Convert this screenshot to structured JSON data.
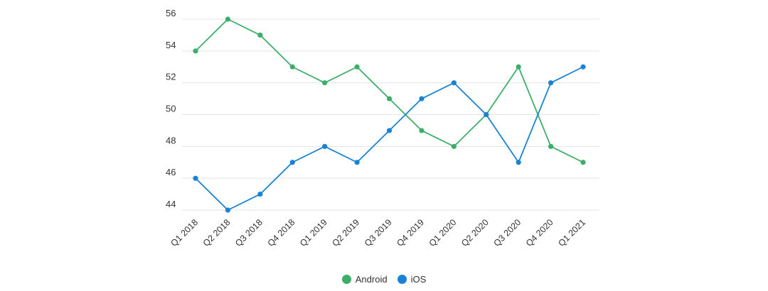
{
  "chart_data": {
    "type": "line",
    "categories": [
      "Q1 2018",
      "Q2 2018",
      "Q3 2018",
      "Q4 2018",
      "Q1 2019",
      "Q2 2019",
      "Q3 2019",
      "Q4 2019",
      "Q1 2020",
      "Q2 2020",
      "Q3 2020",
      "Q4 2020",
      "Q1 2021"
    ],
    "series": [
      {
        "name": "Android",
        "color": "#3dae6a",
        "values": [
          54,
          56,
          55,
          53,
          52,
          53,
          51,
          49,
          48,
          50,
          53,
          48,
          47
        ]
      },
      {
        "name": "iOS",
        "color": "#1a82d4",
        "values": [
          46,
          44,
          45,
          47,
          48,
          47,
          49,
          51,
          52,
          50,
          47,
          52,
          53
        ]
      }
    ],
    "yticks": [
      44,
      46,
      48,
      50,
      52,
      54,
      56
    ],
    "ylim": [
      43.5,
      56.5
    ],
    "grid": true,
    "legend_position": "bottom-center",
    "title": "",
    "xlabel": "",
    "ylabel": ""
  }
}
